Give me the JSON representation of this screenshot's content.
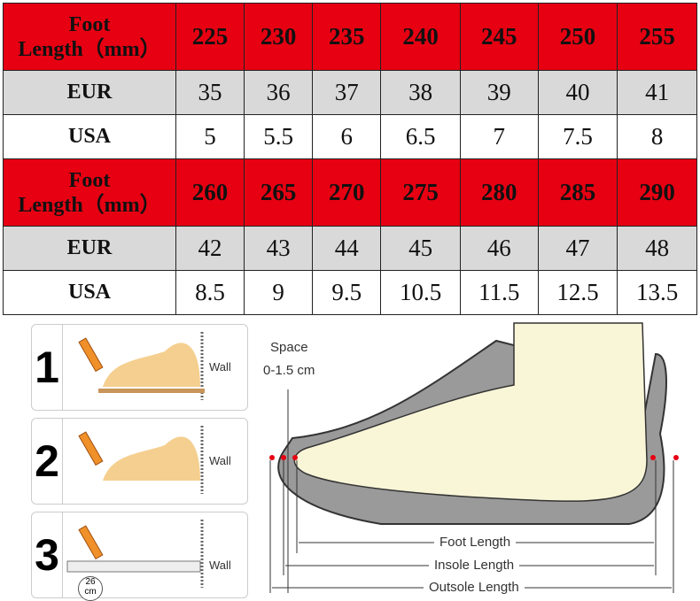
{
  "size_table": {
    "blocks": [
      {
        "header_label_line1": "Foot",
        "header_label_line2": "Length（mm）",
        "foot_length_mm": [
          "225",
          "230",
          "235",
          "240",
          "245",
          "250",
          "255"
        ],
        "eur_label": "EUR",
        "eur": [
          "35",
          "36",
          "37",
          "38",
          "39",
          "40",
          "41"
        ],
        "usa_label": "USA",
        "usa": [
          "5",
          "5.5",
          "6",
          "6.5",
          "7",
          "7.5",
          "8"
        ]
      },
      {
        "header_label_line1": "Foot",
        "header_label_line2": "Length（mm）",
        "foot_length_mm": [
          "260",
          "265",
          "270",
          "275",
          "280",
          "285",
          "290"
        ],
        "eur_label": "EUR",
        "eur": [
          "42",
          "43",
          "44",
          "45",
          "46",
          "47",
          "48"
        ],
        "usa_label": "USA",
        "usa": [
          "8.5",
          "9",
          "9.5",
          "10.5",
          "11.5",
          "12.5",
          "13.5"
        ]
      }
    ],
    "colors": {
      "header": "#e60012",
      "eur_row": "#d9d9d9",
      "usa_row": "#ffffff"
    }
  },
  "measure_steps": [
    {
      "number": "1",
      "wall_label": "Wall"
    },
    {
      "number": "2",
      "wall_label": "Wall"
    },
    {
      "number": "3",
      "wall_label": "Wall",
      "ruler_reading": "26",
      "ruler_unit": "cm"
    }
  ],
  "shoe_diagram": {
    "space_label": "Space",
    "space_value": "0-1.5 cm",
    "foot_length": "Foot Length",
    "insole_length": "Insole Length",
    "outsole_length": "Outsole Length"
  }
}
